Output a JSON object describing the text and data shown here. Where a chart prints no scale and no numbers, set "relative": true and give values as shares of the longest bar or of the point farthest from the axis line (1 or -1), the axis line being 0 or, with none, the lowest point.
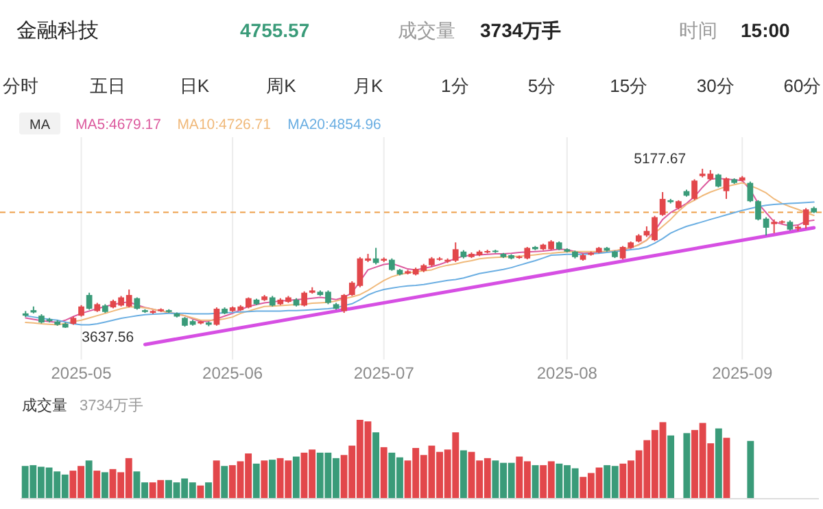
{
  "chart_data": [
    {
      "type": "other",
      "title": "金融科技",
      "annotations": [
        "4755.57",
        "成交量",
        "3734万手",
        "时间",
        "15:00",
        "分时",
        "五日",
        "日K",
        "周K",
        "月K",
        "1分",
        "5分",
        "15分",
        "30分",
        "60分"
      ]
    },
    {
      "type": "candlestick",
      "legend": "top left",
      "legend_title": "MA",
      "grid": "x",
      "tick_labels": "x",
      "categories": [
        null,
        null,
        null,
        null,
        null,
        null,
        null,
        "2025-05",
        null,
        null,
        null,
        null,
        null,
        null,
        null,
        null,
        null,
        null,
        null,
        null,
        null,
        null,
        null,
        null,
        null,
        null,
        "2025-06",
        null,
        null,
        null,
        null,
        null,
        null,
        null,
        null,
        null,
        null,
        null,
        null,
        null,
        null,
        null,
        null,
        null,
        null,
        "2025-07",
        null,
        null,
        null,
        null,
        null,
        null,
        null,
        null,
        null,
        null,
        null,
        null,
        null,
        null,
        null,
        null,
        null,
        null,
        null,
        null,
        null,
        null,
        "2025-08",
        null,
        null,
        null,
        null,
        null,
        null,
        null,
        null,
        null,
        null,
        null,
        null,
        null,
        null,
        null,
        null,
        null,
        null,
        null,
        null,
        null,
        "2025-09",
        null,
        null,
        null,
        null,
        null,
        null,
        null,
        null,
        null
      ],
      "ohlc": [
        [
          3778,
          3801,
          3743,
          3756
        ],
        [
          3809,
          3845,
          3778,
          3787
        ],
        [
          3756,
          3770,
          3681,
          3690
        ],
        [
          3721,
          3734,
          3690,
          3703
        ],
        [
          3699,
          3712,
          3659,
          3668
        ],
        [
          3677,
          3690,
          3637.56,
          3641
        ],
        [
          3677,
          3747,
          3668,
          3734
        ],
        [
          3756,
          3858,
          3747,
          3845
        ],
        [
          3956,
          3978,
          3814,
          3823
        ],
        [
          3801,
          3880,
          3792,
          3867
        ],
        [
          3854,
          3867,
          3783,
          3792
        ],
        [
          3836,
          3911,
          3827,
          3898
        ],
        [
          3854,
          3947,
          3845,
          3933
        ],
        [
          3845,
          4009,
          3836,
          3956
        ],
        [
          3925,
          3933,
          3814,
          3823
        ],
        [
          3809,
          3818,
          3783,
          3792
        ],
        [
          3783,
          3809,
          3774,
          3801
        ],
        [
          3801,
          3827,
          3792,
          3818
        ],
        [
          3809,
          3818,
          3783,
          3792
        ],
        [
          3778,
          3787,
          3739,
          3747
        ],
        [
          3734,
          3743,
          3650,
          3659
        ],
        [
          3703,
          3716,
          3659,
          3668
        ],
        [
          3681,
          3708,
          3672,
          3699
        ],
        [
          3690,
          3699,
          3654,
          3668
        ],
        [
          3668,
          3836,
          3659,
          3823
        ],
        [
          3823,
          3836,
          3770,
          3778
        ],
        [
          3801,
          3845,
          3792,
          3836
        ],
        [
          3809,
          3858,
          3801,
          3845
        ],
        [
          3836,
          3933,
          3827,
          3925
        ],
        [
          3911,
          3920,
          3858,
          3867
        ],
        [
          3907,
          3956,
          3898,
          3942
        ],
        [
          3933,
          3947,
          3845,
          3854
        ],
        [
          3867,
          3925,
          3858,
          3911
        ],
        [
          3889,
          3947,
          3880,
          3933
        ],
        [
          3911,
          3925,
          3845,
          3854
        ],
        [
          3854,
          3991,
          3845,
          3978
        ],
        [
          3978,
          4031,
          3969,
          4000
        ],
        [
          3987,
          4000,
          3947,
          3956
        ],
        [
          3987,
          4000,
          3867,
          3880
        ],
        [
          3867,
          3880,
          3814,
          3823
        ],
        [
          3801,
          3965,
          3783,
          3956
        ],
        [
          3956,
          4089,
          3947,
          4075
        ],
        [
          4044,
          4323,
          4031,
          4310
        ],
        [
          4288,
          4354,
          4275,
          4310
        ],
        [
          4310,
          4412,
          4252,
          4266
        ],
        [
          4288,
          4319,
          4275,
          4306
        ],
        [
          4297,
          4310,
          4190,
          4199
        ],
        [
          4199,
          4208,
          4146,
          4155
        ],
        [
          4164,
          4199,
          4155,
          4186
        ],
        [
          4155,
          4221,
          4146,
          4208
        ],
        [
          4190,
          4257,
          4177,
          4244
        ],
        [
          4244,
          4323,
          4230,
          4310
        ],
        [
          4297,
          4323,
          4288,
          4310
        ],
        [
          4279,
          4310,
          4266,
          4297
        ],
        [
          4288,
          4465,
          4275,
          4399
        ],
        [
          4376,
          4390,
          4310,
          4323
        ],
        [
          4323,
          4368,
          4314,
          4354
        ],
        [
          4341,
          4390,
          4332,
          4376
        ],
        [
          4368,
          4394,
          4359,
          4381
        ],
        [
          4385,
          4394,
          4363,
          4372
        ],
        [
          4354,
          4363,
          4314,
          4323
        ],
        [
          4341,
          4350,
          4301,
          4310
        ],
        [
          4314,
          4337,
          4306,
          4328
        ],
        [
          4310,
          4421,
          4301,
          4412
        ],
        [
          4421,
          4430,
          4390,
          4399
        ],
        [
          4399,
          4452,
          4390,
          4443
        ],
        [
          4399,
          4487,
          4390,
          4474
        ],
        [
          4465,
          4474,
          4390,
          4399
        ],
        [
          4399,
          4408,
          4368,
          4376
        ],
        [
          4376,
          4385,
          4310,
          4323
        ],
        [
          4297,
          4354,
          4288,
          4341
        ],
        [
          4345,
          4376,
          4337,
          4363
        ],
        [
          4368,
          4421,
          4359,
          4412
        ],
        [
          4412,
          4421,
          4376,
          4385
        ],
        [
          4376,
          4385,
          4314,
          4323
        ],
        [
          4310,
          4430,
          4301,
          4421
        ],
        [
          4412,
          4474,
          4403,
          4465
        ],
        [
          4474,
          4545,
          4465,
          4532
        ],
        [
          4532,
          4620,
          4518,
          4576
        ],
        [
          4487,
          4722,
          4478,
          4709
        ],
        [
          4731,
          4952,
          4722,
          4886
        ],
        [
          4873,
          4886,
          4842,
          4855
        ],
        [
          4797,
          4873,
          4784,
          4864
        ],
        [
          4961,
          4975,
          4908,
          4917
        ],
        [
          4886,
          5076,
          4873,
          5063
        ],
        [
          5107,
          5177.67,
          5094,
          5130
        ],
        [
          5076,
          5165,
          5063,
          5130
        ],
        [
          5121,
          5130,
          4997,
          5006
        ],
        [
          4961,
          5094,
          4886,
          5085
        ],
        [
          5076,
          5085,
          5032,
          5041
        ],
        [
          5063,
          5107,
          5054,
          5094
        ],
        [
          5041,
          5054,
          4855,
          4864
        ],
        [
          4864,
          4873,
          4678,
          4687
        ],
        [
          4695,
          4709,
          4532,
          4607
        ],
        [
          4642,
          4687,
          4554,
          4664
        ],
        [
          4656,
          4678,
          4647,
          4669
        ],
        [
          4664,
          4678,
          4580,
          4589
        ],
        [
          4598,
          4629,
          4576,
          4616
        ],
        [
          4633,
          4797,
          4598,
          4784
        ],
        [
          4797,
          4811,
          4749,
          4755.57
        ]
      ],
      "colors": [
        "#3a9b79",
        "#3a9b79",
        "#3a9b79",
        "#3a9b79",
        "#3a9b79",
        "#3a9b79",
        "#e2474b",
        "#e2474b",
        "#3a9b79",
        "#e2474b",
        "#3a9b79",
        "#e2474b",
        "#e2474b",
        "#e2474b",
        "#3a9b79",
        "#3a9b79",
        "#e2474b",
        "#e2474b",
        "#3a9b79",
        "#3a9b79",
        "#3a9b79",
        "#3a9b79",
        "#e2474b",
        "#3a9b79",
        "#e2474b",
        "#3a9b79",
        "#e2474b",
        "#e2474b",
        "#e2474b",
        "#3a9b79",
        "#e2474b",
        "#3a9b79",
        "#e2474b",
        "#e2474b",
        "#3a9b79",
        "#e2474b",
        "#e2474b",
        "#3a9b79",
        "#3a9b79",
        "#3a9b79",
        "#e2474b",
        "#e2474b",
        "#e2474b",
        "#e2474b",
        "#3a9b79",
        "#e2474b",
        "#3a9b79",
        "#3a9b79",
        "#e2474b",
        "#e2474b",
        "#e2474b",
        "#e2474b",
        "#e2474b",
        "#e2474b",
        "#e2474b",
        "#3a9b79",
        "#e2474b",
        "#e2474b",
        "#e2474b",
        "#3a9b79",
        "#3a9b79",
        "#3a9b79",
        "#e2474b",
        "#e2474b",
        "#3a9b79",
        "#e2474b",
        "#e2474b",
        "#3a9b79",
        "#3a9b79",
        "#3a9b79",
        "#e2474b",
        "#e2474b",
        "#e2474b",
        "#3a9b79",
        "#3a9b79",
        "#e2474b",
        "#e2474b",
        "#e2474b",
        "#e2474b",
        "#e2474b",
        "#e2474b",
        "#3a9b79",
        "#e2474b",
        "#3a9b79",
        "#e2474b",
        "#e2474b",
        "#e2474b",
        "#3a9b79",
        "#e2474b",
        "#3a9b79",
        "#e2474b",
        "#3a9b79",
        "#3a9b79",
        "#3a9b79",
        "#e2474b",
        "#e2474b",
        "#3a9b79",
        "#e2474b",
        "#e2474b",
        "#3a9b79"
      ],
      "series": [
        {
          "type": "line",
          "name": "MA5:4679.17",
          "color": "#dc5a9e",
          "values": [
            3734,
            3721,
            3708,
            3699,
            3690,
            3712,
            3747,
            3778,
            3801,
            3823,
            3845,
            3863,
            3880,
            3889,
            3858,
            3836,
            3818,
            3801,
            3787,
            3770,
            3756,
            3725,
            3699,
            3703,
            3725,
            3752,
            3778,
            3814,
            3845,
            3863,
            3880,
            3889,
            3898,
            3903,
            3911,
            3916,
            3925,
            3933,
            3925,
            3911,
            3933,
            3978,
            4089,
            4199,
            4226,
            4252,
            4261,
            4235,
            4208,
            4199,
            4213,
            4230,
            4252,
            4279,
            4310,
            4332,
            4341,
            4345,
            4350,
            4354,
            4354,
            4359,
            4368,
            4372,
            4376,
            4381,
            4390,
            4399,
            4394,
            4376,
            4359,
            4363,
            4372,
            4376,
            4385,
            4394,
            4412,
            4443,
            4487,
            4576,
            4687,
            4753,
            4797,
            4842,
            4908,
            4997,
            5076,
            5085,
            5076,
            5072,
            5063,
            4975,
            4842,
            4753,
            4664,
            4642,
            4625,
            4633,
            4669,
            4679.17
          ]
        },
        {
          "type": "line",
          "name": "MA10:4726.71",
          "color": "#f0b97a",
          "values": [
            3690,
            3685,
            3677,
            3672,
            3668,
            3681,
            3699,
            3712,
            3734,
            3756,
            3778,
            3801,
            3823,
            3840,
            3840,
            3832,
            3818,
            3801,
            3787,
            3774,
            3756,
            3734,
            3712,
            3712,
            3712,
            3725,
            3743,
            3778,
            3801,
            3823,
            3845,
            3849,
            3854,
            3858,
            3863,
            3867,
            3876,
            3880,
            3885,
            3898,
            3920,
            3938,
            3960,
            4000,
            4049,
            4097,
            4133,
            4155,
            4168,
            4182,
            4190,
            4199,
            4226,
            4244,
            4257,
            4275,
            4288,
            4306,
            4314,
            4319,
            4323,
            4328,
            4332,
            4337,
            4345,
            4354,
            4359,
            4368,
            4372,
            4376,
            4376,
            4376,
            4376,
            4376,
            4385,
            4399,
            4416,
            4439,
            4487,
            4554,
            4620,
            4687,
            4766,
            4833,
            4873,
            4917,
            4952,
            4979,
            5006,
            5023,
            5041,
            5014,
            4983,
            4944,
            4886,
            4842,
            4811,
            4784,
            4753,
            4726.71
          ]
        },
        {
          "type": "line",
          "name": "MA20:4854.96",
          "color": "#6aaee2",
          "values": [
            3756,
            3743,
            3730,
            3721,
            3712,
            3694,
            3677,
            3668,
            3668,
            3677,
            3694,
            3712,
            3730,
            3743,
            3756,
            3765,
            3770,
            3774,
            3778,
            3778,
            3778,
            3774,
            3774,
            3774,
            3778,
            3783,
            3787,
            3792,
            3796,
            3801,
            3801,
            3801,
            3801,
            3805,
            3805,
            3809,
            3814,
            3818,
            3823,
            3832,
            3854,
            3871,
            3911,
            3956,
            3987,
            4009,
            4022,
            4035,
            4044,
            4049,
            4058,
            4071,
            4084,
            4097,
            4106,
            4120,
            4142,
            4164,
            4177,
            4190,
            4204,
            4221,
            4244,
            4266,
            4288,
            4314,
            4341,
            4345,
            4350,
            4350,
            4350,
            4354,
            4359,
            4368,
            4376,
            4385,
            4394,
            4403,
            4421,
            4456,
            4501,
            4554,
            4589,
            4620,
            4642,
            4664,
            4687,
            4709,
            4731,
            4753,
            4775,
            4793,
            4811,
            4824,
            4833,
            4837,
            4842,
            4846,
            4851,
            4854.96
          ]
        },
        {
          "type": "line",
          "color": "#d64fe3",
          "values": [
            null,
            null,
            null,
            null,
            null,
            null,
            null,
            null,
            null,
            null,
            null,
            null,
            null,
            null,
            null,
            3477,
            null,
            null,
            null,
            null,
            null,
            null,
            null,
            null,
            null,
            null,
            null,
            null,
            null,
            null,
            null,
            null,
            null,
            null,
            null,
            null,
            null,
            null,
            null,
            null,
            null,
            null,
            null,
            null,
            null,
            null,
            null,
            null,
            null,
            null,
            null,
            null,
            null,
            null,
            null,
            null,
            null,
            null,
            null,
            null,
            null,
            null,
            null,
            null,
            null,
            null,
            null,
            null,
            null,
            null,
            null,
            null,
            null,
            null,
            null,
            null,
            null,
            null,
            null,
            null,
            null,
            null,
            null,
            null,
            null,
            null,
            null,
            null,
            null,
            null,
            null,
            null,
            null,
            null,
            null,
            null,
            null,
            null,
            null,
            4607
          ]
        }
      ],
      "ref_lines": [
        {
          "axis": "y",
          "value": 4755.57,
          "color": "#eea04a",
          "line_style": "dashed"
        }
      ],
      "annotations": [
        {
          "text": "3637.56",
          "y": 3637.56
        },
        "5177.67"
      ]
    },
    {
      "type": "bar",
      "title": "成交量",
      "subtitle": "3734万手",
      "relative": true,
      "tick_labels": false,
      "categories": [
        null,
        null,
        null,
        null,
        null,
        null,
        null,
        null,
        null,
        null,
        null,
        null,
        null,
        null,
        null,
        null,
        null,
        null,
        null,
        null,
        null,
        null,
        null,
        null,
        null,
        null,
        null,
        null,
        null,
        null,
        null,
        null,
        null,
        null,
        null,
        null,
        null,
        null,
        null,
        null,
        null,
        null,
        null,
        null,
        null,
        null,
        null,
        null,
        null,
        null,
        null,
        null,
        null,
        null,
        null,
        null,
        null,
        null,
        null,
        null,
        null,
        null,
        null,
        null,
        null,
        null,
        null,
        null,
        null,
        null,
        null,
        null,
        null,
        null,
        null,
        null,
        null,
        null,
        null,
        null,
        null,
        null,
        null,
        null,
        null,
        null,
        null,
        null,
        null,
        null,
        null,
        null,
        null,
        null,
        null,
        null,
        null,
        null,
        null,
        null
      ],
      "values": [
        0.41,
        0.42,
        0.4,
        0.39,
        0.34,
        0.3,
        0.35,
        0.41,
        0.48,
        0.35,
        0.33,
        0.37,
        0.33,
        0.51,
        0.34,
        0.2,
        0.2,
        0.23,
        0.23,
        0.2,
        0.25,
        0.2,
        0.16,
        0.2,
        0.48,
        0.41,
        0.42,
        0.47,
        0.57,
        0.44,
        0.48,
        0.49,
        0.51,
        0.48,
        0.53,
        0.58,
        0.62,
        0.58,
        0.58,
        0.51,
        0.55,
        0.67,
        1,
        0.98,
        0.84,
        0.65,
        0.58,
        0.52,
        0.48,
        0.64,
        0.55,
        0.67,
        0.59,
        0.62,
        0.84,
        0.61,
        0.59,
        0.48,
        0.51,
        0.48,
        0.45,
        0.45,
        0.53,
        0.47,
        0.42,
        0.42,
        0.47,
        0.44,
        0.42,
        0.38,
        0.27,
        0.32,
        0.39,
        0.42,
        0.41,
        0.44,
        0.48,
        0.61,
        0.74,
        0.87,
        0.97,
        0.8,
        null,
        0.83,
        0.87,
        0.96,
        0.7,
        0.89,
        0.77,
        null,
        null,
        0.73,
        null,
        null,
        null,
        null,
        null,
        null,
        null,
        null
      ],
      "colors": [
        "#3a9b79",
        "#3a9b79",
        "#3a9b79",
        "#3a9b79",
        "#3a9b79",
        "#3a9b79",
        "#e2474b",
        "#e2474b",
        "#3a9b79",
        "#e2474b",
        "#3a9b79",
        "#e2474b",
        "#e2474b",
        "#e2474b",
        "#3a9b79",
        "#3a9b79",
        "#e2474b",
        "#e2474b",
        "#3a9b79",
        "#3a9b79",
        "#3a9b79",
        "#3a9b79",
        "#e2474b",
        "#3a9b79",
        "#e2474b",
        "#3a9b79",
        "#e2474b",
        "#e2474b",
        "#e2474b",
        "#3a9b79",
        "#e2474b",
        "#3a9b79",
        "#e2474b",
        "#e2474b",
        "#3a9b79",
        "#e2474b",
        "#e2474b",
        "#3a9b79",
        "#3a9b79",
        "#3a9b79",
        "#e2474b",
        "#e2474b",
        "#e2474b",
        "#e2474b",
        "#3a9b79",
        "#e2474b",
        "#3a9b79",
        "#3a9b79",
        "#e2474b",
        "#e2474b",
        "#e2474b",
        "#e2474b",
        "#e2474b",
        "#e2474b",
        "#e2474b",
        "#3a9b79",
        "#e2474b",
        "#e2474b",
        "#e2474b",
        "#3a9b79",
        "#3a9b79",
        "#3a9b79",
        "#e2474b",
        "#e2474b",
        "#3a9b79",
        "#e2474b",
        "#e2474b",
        "#3a9b79",
        "#3a9b79",
        "#3a9b79",
        "#e2474b",
        "#e2474b",
        "#e2474b",
        "#3a9b79",
        "#3a9b79",
        "#e2474b",
        "#e2474b",
        "#e2474b",
        "#e2474b",
        "#e2474b",
        "#e2474b",
        "#3a9b79",
        "#e2474b",
        "#3a9b79",
        "#e2474b",
        "#e2474b",
        "#e2474b",
        "#3a9b79",
        "#e2474b",
        "#3a9b79",
        "#e2474b",
        "#3a9b79",
        "#3a9b79",
        "#3a9b79",
        "#e2474b",
        "#e2474b",
        "#3a9b79",
        "#e2474b",
        "#e2474b",
        "#3a9b79"
      ]
    }
  ]
}
